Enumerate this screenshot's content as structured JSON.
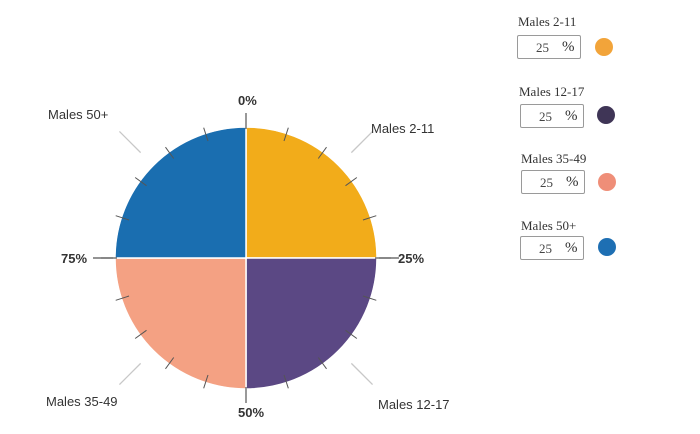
{
  "pie": {
    "top_label": "0%",
    "right_label": "25%",
    "bottom_label": "50%",
    "left_label": "75%",
    "slices": [
      {
        "name": "Males 2-11",
        "value": 25,
        "color": "#f2ac1a"
      },
      {
        "name": "Males 12-17",
        "value": 25,
        "color": "#5b4884"
      },
      {
        "name": "Males 35-49",
        "value": 25,
        "color": "#f4a183"
      },
      {
        "name": "Males 50+",
        "value": 25,
        "color": "#1a6eb0"
      }
    ]
  },
  "panel": {
    "groups": [
      {
        "title": "Males 2-11",
        "value": "25",
        "unit": "%",
        "color": "#f2a43a"
      },
      {
        "title": "Males 12-17",
        "value": "25",
        "unit": "%",
        "color": "#3f3556"
      },
      {
        "title": "Males 35-49",
        "value": "25",
        "unit": "%",
        "color": "#ef8e78"
      },
      {
        "title": "Males 50+",
        "value": "25",
        "unit": "%",
        "color": "#1e6fb3"
      }
    ]
  }
}
